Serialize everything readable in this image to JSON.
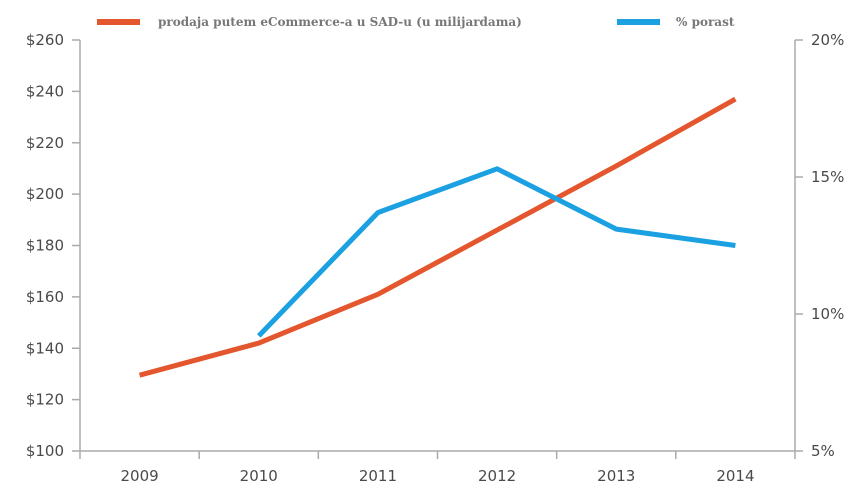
{
  "chart_data": {
    "type": "line",
    "title": "",
    "xlabel": "",
    "ylabel": "",
    "categories": [
      "2009",
      "2010",
      "2011",
      "2012",
      "2013",
      "2014"
    ],
    "y_left": {
      "range": [
        100,
        260
      ],
      "ticks": [
        100,
        120,
        140,
        160,
        180,
        200,
        220,
        240,
        260
      ],
      "tick_labels": [
        "$100",
        "$120",
        "$140",
        "$160",
        "$180",
        "$200",
        "$220",
        "$240",
        "$260"
      ]
    },
    "y_right": {
      "range": [
        5,
        20
      ],
      "ticks": [
        5,
        10,
        15,
        20
      ],
      "tick_labels": [
        "5%",
        "10%",
        "15%",
        "20%"
      ]
    },
    "series": [
      {
        "name": "prodaja putem eCommerce-a u SAD-u (u milijardama)",
        "axis": "left",
        "color": "#e4572e",
        "values": [
          129.5,
          142,
          161,
          186,
          211,
          237
        ]
      },
      {
        "name": "% porast",
        "axis": "right",
        "color": "#1ba1e2",
        "values": [
          null,
          9.2,
          13.7,
          15.3,
          13.1,
          12.5
        ]
      }
    ],
    "grid": false,
    "legend": "top"
  }
}
